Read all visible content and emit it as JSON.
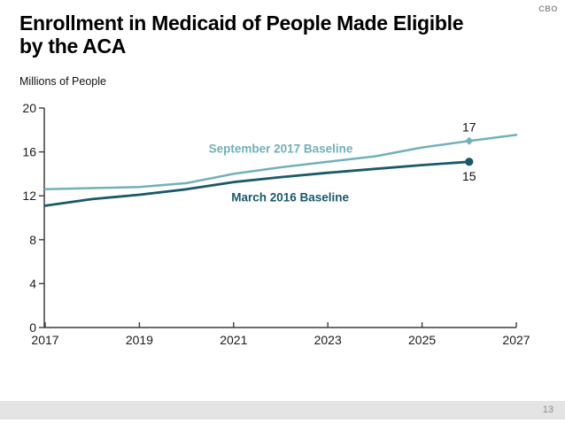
{
  "header": {
    "logo": "CBO",
    "title_line1": "Enrollment in Medicaid of People Made Eligible",
    "title_line2": "by the ACA"
  },
  "chart": {
    "units_label": "Millions of People"
  },
  "chart_data": {
    "type": "line",
    "title": "Enrollment in Medicaid of People Made Eligible by the ACA",
    "ylabel": "Millions of People",
    "xlabel": "",
    "ylim": [
      0,
      20
    ],
    "yticks": [
      0,
      4,
      8,
      12,
      16,
      20
    ],
    "xticks": [
      2017,
      2019,
      2021,
      2023,
      2025,
      2027
    ],
    "grid": false,
    "legend": "inline-labels",
    "axis_color": "#3d3d3d",
    "tick_label_color": "#1a1a1a",
    "series": [
      {
        "name": "September 2017 Baseline",
        "color": "#72b0ba",
        "line_width": 2.5,
        "x": [
          2017,
          2018,
          2019,
          2020,
          2021,
          2022,
          2023,
          2024,
          2025,
          2026,
          2027
        ],
        "values": [
          12.6,
          12.7,
          12.8,
          13.15,
          14.0,
          14.6,
          15.1,
          15.6,
          16.4,
          17.0,
          17.55
        ],
        "marker": "diamond",
        "marker_year": 2026,
        "marker_value": 17.0,
        "marker_label": "17",
        "marker_label_position": "above",
        "label_anchor": {
          "year": 2022.0,
          "value": 16.35
        }
      },
      {
        "name": "March 2016 Baseline",
        "color": "#1a596c",
        "line_width": 2.8,
        "x": [
          2017,
          2018,
          2019,
          2020,
          2021,
          2022,
          2023,
          2024,
          2025,
          2026
        ],
        "values": [
          11.1,
          11.7,
          12.1,
          12.6,
          13.25,
          13.7,
          14.1,
          14.45,
          14.8,
          15.1
        ],
        "marker": "circle",
        "marker_year": 2026,
        "marker_value": 15.1,
        "marker_label": "15",
        "marker_label_position": "below",
        "label_anchor": {
          "year": 2022.2,
          "value": 11.9
        }
      }
    ]
  },
  "footer": {
    "page_number": "13"
  }
}
